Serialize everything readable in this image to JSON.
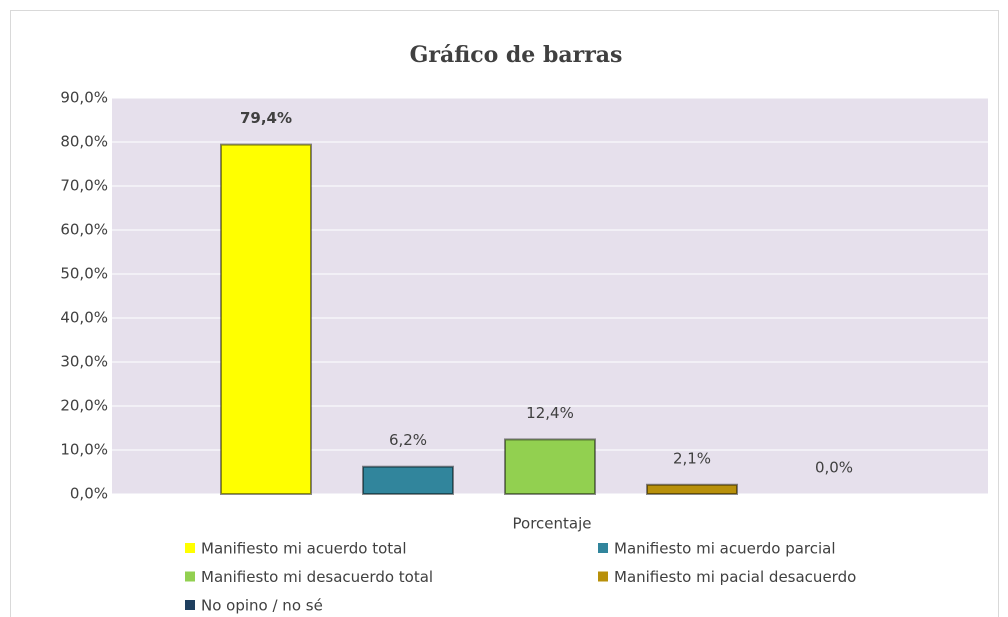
{
  "chart_data": {
    "type": "bar",
    "title": "Gráfico de barras",
    "categories": [
      "Porcentaje"
    ],
    "series": [
      {
        "name": "Manifiesto mi acuerdo total",
        "color": "#ffff00",
        "values": [
          79.4
        ],
        "value_labels": [
          "79,4%"
        ]
      },
      {
        "name": "Manifiesto mi acuerdo parcial",
        "color": "#31859c",
        "values": [
          6.2
        ],
        "value_labels": [
          "6,2%"
        ]
      },
      {
        "name": "Manifiesto mi desacuerdo total",
        "color": "#92d050",
        "values": [
          12.4
        ],
        "value_labels": [
          "12,4%"
        ]
      },
      {
        "name": "Manifiesto mi pacial desacuerdo",
        "color": "#b8900a",
        "values": [
          2.1
        ],
        "value_labels": [
          "2,1%"
        ]
      },
      {
        "name": "No opino / no sé",
        "color": "#1f3f5f",
        "values": [
          0.0
        ],
        "value_labels": [
          "0,0%"
        ]
      }
    ],
    "ylim": [
      0,
      90
    ],
    "yticks": [
      {
        "value": 0,
        "label": "0,0%"
      },
      {
        "value": 10,
        "label": "10,0%"
      },
      {
        "value": 20,
        "label": "20,0%"
      },
      {
        "value": 30,
        "label": "30,0%"
      },
      {
        "value": 40,
        "label": "40,0%"
      },
      {
        "value": 50,
        "label": "50,0%"
      },
      {
        "value": 60,
        "label": "60,0%"
      },
      {
        "value": 70,
        "label": "70,0%"
      },
      {
        "value": 80,
        "label": "80,0%"
      },
      {
        "value": 90,
        "label": "90,0%"
      }
    ],
    "grid": true
  }
}
